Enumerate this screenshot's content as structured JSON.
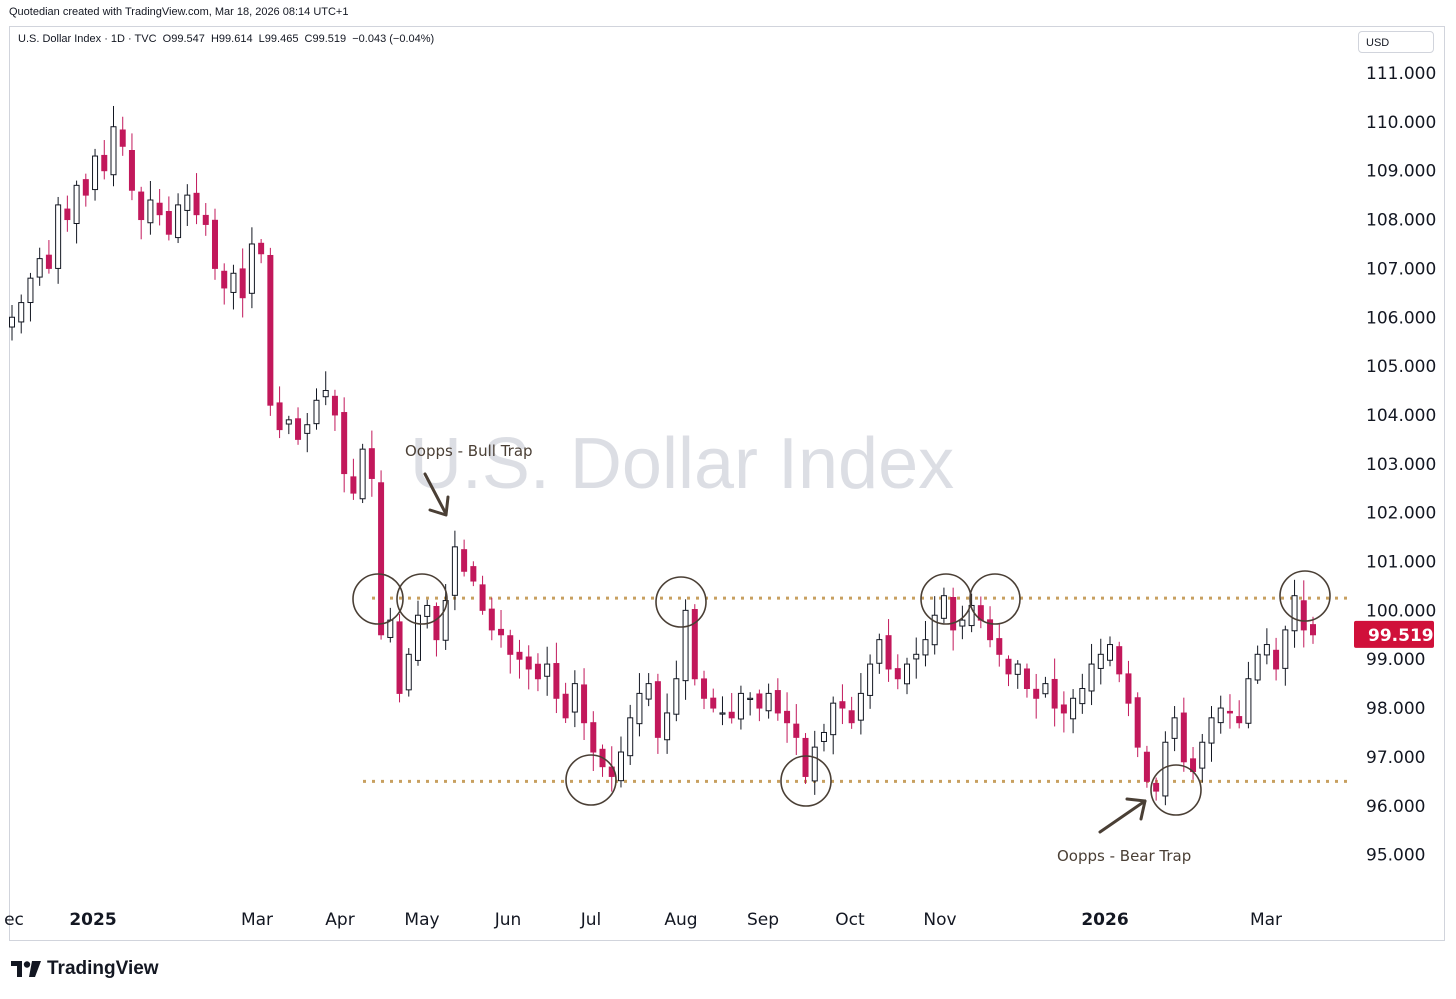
{
  "attribution": "Quotedian created with TradingView.com, Mar 18, 2026 08:14 UTC+1",
  "legend": "U.S. Dollar Index · 1D · TVC  O99.547  H99.614  L99.465  C99.519  −0.043 (−0.04%)",
  "currency": "USD",
  "brand": "TradingView",
  "colors": {
    "up": "#131722",
    "down": "#c2185b",
    "level": "#c8a060",
    "annotation": "#4a3f35",
    "price": "#d0103a"
  },
  "chart_data": {
    "type": "candlestick",
    "title": "U.S. Dollar Index",
    "interval": "1D",
    "exchange": "TVC",
    "ylim": [
      94.4,
      111.8
    ],
    "y_ticks": [
      "111.000",
      "110.000",
      "109.000",
      "108.000",
      "107.000",
      "106.000",
      "105.000",
      "104.000",
      "103.000",
      "102.000",
      "101.000",
      "100.000",
      "99.000",
      "98.000",
      "97.000",
      "96.000",
      "95.000"
    ],
    "x_ticks": [
      {
        "label": "ec",
        "bold": false
      },
      {
        "label": "2025",
        "bold": true
      },
      {
        "label": "Mar",
        "bold": false
      },
      {
        "label": "Apr",
        "bold": false
      },
      {
        "label": "May",
        "bold": false
      },
      {
        "label": "Jun",
        "bold": false
      },
      {
        "label": "Jul",
        "bold": false
      },
      {
        "label": "Aug",
        "bold": false
      },
      {
        "label": "Sep",
        "bold": false
      },
      {
        "label": "Oct",
        "bold": false
      },
      {
        "label": "Nov",
        "bold": false
      },
      {
        "label": "2026",
        "bold": true
      },
      {
        "label": "Mar",
        "bold": false
      }
    ],
    "last_price": "99.519",
    "last_price_value": 99.519,
    "resistance_level": 100.25,
    "support_level": 96.5,
    "close_path": [
      106.0,
      106.3,
      106.8,
      107.2,
      107.0,
      108.3,
      108.0,
      108.7,
      108.5,
      109.3,
      109.0,
      109.9,
      109.5,
      108.6,
      108.0,
      108.4,
      108.1,
      107.7,
      108.3,
      108.5,
      108.1,
      107.9,
      107.0,
      106.6,
      106.9,
      106.4,
      107.5,
      107.3,
      104.2,
      103.7,
      103.9,
      103.5,
      103.8,
      104.3,
      104.5,
      104.0,
      102.8,
      102.4,
      103.3,
      102.7,
      99.5,
      99.8,
      98.3,
      99.1,
      99.9,
      100.1,
      99.4,
      100.2,
      101.3,
      100.8,
      100.6,
      100.0,
      99.6,
      99.5,
      99.1,
      99.0,
      98.8,
      98.6,
      98.9,
      98.2,
      97.8,
      98.5,
      97.7,
      97.1,
      96.8,
      96.6,
      97.1,
      97.8,
      98.3,
      98.5,
      97.4,
      97.9,
      98.6,
      100.0,
      98.6,
      98.2,
      98.0,
      97.9,
      97.8,
      98.3,
      98.2,
      98.0,
      98.3,
      97.9,
      97.7,
      97.4,
      96.6,
      97.2,
      97.5,
      98.1,
      98.0,
      97.7,
      98.3,
      98.9,
      99.4,
      98.8,
      98.6,
      98.9,
      99.1,
      99.4,
      99.9,
      100.3,
      99.6,
      99.8,
      100.1,
      99.8,
      99.4,
      99.1,
      98.7,
      98.9,
      98.4,
      98.2,
      98.5,
      98.0,
      97.9,
      98.2,
      98.4,
      98.9,
      99.1,
      99.3,
      98.7,
      98.1,
      97.2,
      96.5,
      96.3,
      97.3,
      97.8,
      96.9,
      96.7,
      97.3,
      97.8,
      98.0,
      97.9,
      97.7,
      98.6,
      99.1,
      99.3,
      98.8,
      99.6,
      100.3,
      99.6,
      99.5
    ],
    "annotations": [
      {
        "label": "Oopps - Bull Trap"
      },
      {
        "label": "Oopps - Bear Trap"
      }
    ]
  }
}
